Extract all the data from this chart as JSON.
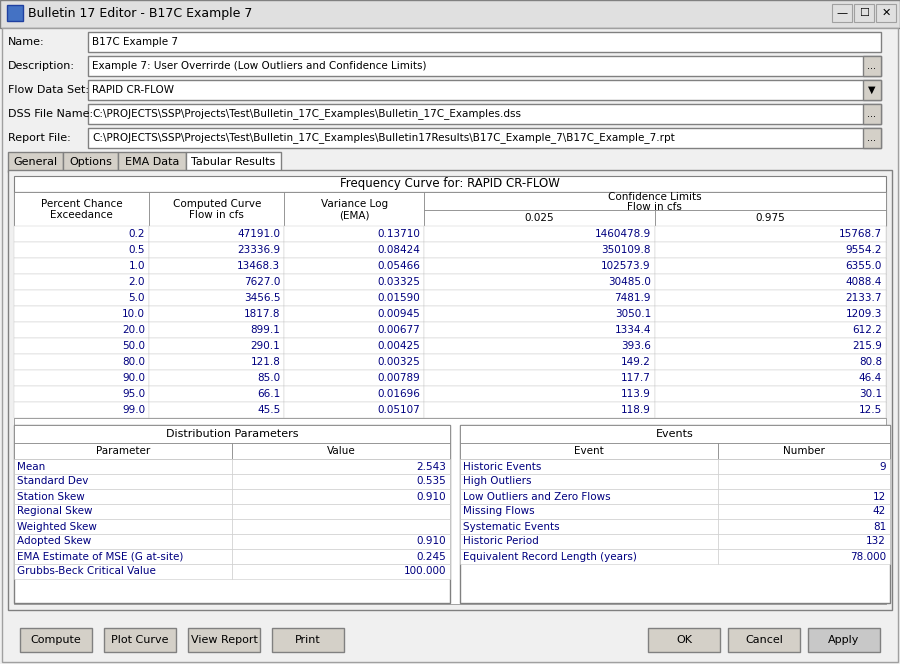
{
  "title": "Bulletin 17 Editor - B17C Example 7",
  "name_value": "B17C Example 7",
  "description_value": "Example 7: User Overrirde (Low Outliers and Confidence Limits)",
  "flow_data_set": "RAPID CR-FLOW",
  "dss_file": "C:\\PROJECTS\\SSP\\Projects\\Test\\Bulletin_17C_Examples\\Bulletin_17C_Examples.dss",
  "report_file": "C:\\PROJECTS\\SSP\\Projects\\Test\\Bulletin_17C_Examples\\Bulletin17Results\\B17C_Example_7\\B17C_Example_7.rpt",
  "tabs": [
    "General",
    "Options",
    "EMA Data",
    "Tabular Results"
  ],
  "active_tab": "Tabular Results",
  "freq_table_title": "Frequency Curve for: RAPID CR-FLOW",
  "freq_data": [
    [
      "0.2",
      "47191.0",
      "0.13710",
      "1460478.9",
      "15768.7"
    ],
    [
      "0.5",
      "23336.9",
      "0.08424",
      "350109.8",
      "9554.2"
    ],
    [
      "1.0",
      "13468.3",
      "0.05466",
      "102573.9",
      "6355.0"
    ],
    [
      "2.0",
      "7627.0",
      "0.03325",
      "30485.0",
      "4088.4"
    ],
    [
      "5.0",
      "3456.5",
      "0.01590",
      "7481.9",
      "2133.7"
    ],
    [
      "10.0",
      "1817.8",
      "0.00945",
      "3050.1",
      "1209.3"
    ],
    [
      "20.0",
      "899.1",
      "0.00677",
      "1334.4",
      "612.2"
    ],
    [
      "50.0",
      "290.1",
      "0.00425",
      "393.6",
      "215.9"
    ],
    [
      "80.0",
      "121.8",
      "0.00325",
      "149.2",
      "80.8"
    ],
    [
      "90.0",
      "85.0",
      "0.00789",
      "117.7",
      "46.4"
    ],
    [
      "95.0",
      "66.1",
      "0.01696",
      "113.9",
      "30.1"
    ],
    [
      "99.0",
      "45.5",
      "0.05107",
      "118.9",
      "12.5"
    ]
  ],
  "dist_params_title": "Distribution Parameters",
  "dist_params": [
    [
      "Mean",
      "2.543"
    ],
    [
      "Standard Dev",
      "0.535"
    ],
    [
      "Station Skew",
      "0.910"
    ],
    [
      "Regional Skew",
      ""
    ],
    [
      "Weighted Skew",
      ""
    ],
    [
      "Adopted Skew",
      "0.910"
    ],
    [
      "EMA Estimate of MSE (G at-site)",
      "0.245"
    ],
    [
      "Grubbs-Beck Critical Value",
      "100.000"
    ]
  ],
  "events_title": "Events",
  "events_data": [
    [
      "Historic Events",
      "9"
    ],
    [
      "High Outliers",
      ""
    ],
    [
      "Low Outliers and Zero Flows",
      "12"
    ],
    [
      "Missing Flows",
      "42"
    ],
    [
      "Systematic Events",
      "81"
    ],
    [
      "Historic Period",
      "132"
    ],
    [
      "Equivalent Record Length (years)",
      "78.000"
    ]
  ],
  "buttons_left": [
    "Compute",
    "Plot Curve",
    "View Report",
    "Print"
  ],
  "buttons_right": [
    "OK",
    "Cancel",
    "Apply"
  ]
}
